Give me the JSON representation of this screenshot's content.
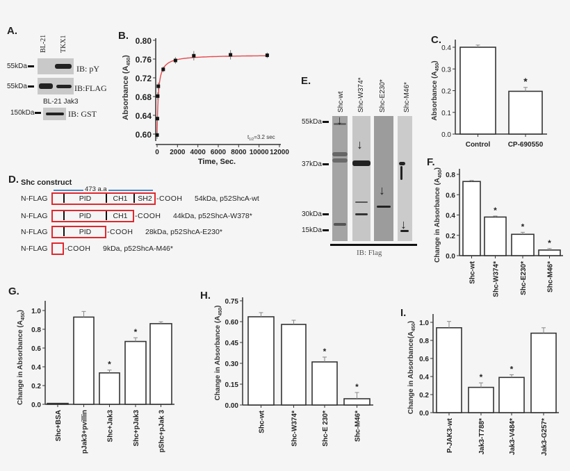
{
  "panel_A": {
    "label": "A.",
    "lanes": [
      "BL-21",
      "TKX1"
    ],
    "blots": [
      {
        "marker": "55kDa",
        "ib": "IB: pY"
      },
      {
        "marker": "55kDa",
        "ib": "IB:FLAG"
      },
      {
        "marker": "150kDa",
        "ib": "IB: GST",
        "lanes": "BL-21 Jak3"
      }
    ]
  },
  "panel_D": {
    "label": "D.",
    "title": "Shc construct",
    "length": "473 a.a",
    "rows": [
      {
        "prefix": "N-FLAG",
        "domains": [
          "",
          "PID",
          "CH1",
          "SH2"
        ],
        "suffix": "-COOH",
        "desc": "54kDa, p52ShcA-wt"
      },
      {
        "prefix": "N-FLAG",
        "domains": [
          "",
          "PID",
          "CH1"
        ],
        "suffix": "-COOH",
        "desc": "44kDa, p52ShcA-W378*"
      },
      {
        "prefix": "N-FLAG",
        "domains": [
          "",
          "PID"
        ],
        "suffix": "-COOH",
        "desc": "28kDa, p52ShcA-E230*"
      },
      {
        "prefix": "N-FLAG",
        "domains": [
          ""
        ],
        "suffix": "-COOH",
        "desc": "9kDa, p52ShcA-M46*"
      }
    ],
    "colors": {
      "box": "#e0282d",
      "line": "#4a86c5"
    }
  },
  "panel_E": {
    "label": "E.",
    "lanes": [
      "Shc-wt",
      "Shc-W374*",
      "Shc-E230*",
      "Shc-M46*"
    ],
    "markers": [
      "55kDa",
      "37kDa",
      "30kDa",
      "15kDa"
    ],
    "ib": "IB: Flag"
  },
  "chart_data": [
    {
      "panel": "B.",
      "type": "scatter",
      "ylabel": {
        "main": "Absorbance (A",
        "sub": "450",
        "end": ")"
      },
      "xlabel": "Time, Sec.",
      "xlim": [
        0,
        12000
      ],
      "ylim": [
        0.6,
        0.8
      ],
      "xticks": [
        "0",
        "2000",
        "4000",
        "6000",
        "8000",
        "10000",
        "12000"
      ],
      "yticks": [
        "0.60",
        "0.64",
        "0.68",
        "0.72",
        "0.76",
        "0.80"
      ],
      "x": [
        0,
        30,
        60,
        120,
        600,
        1800,
        3600,
        7200,
        10800
      ],
      "y": [
        0.598,
        0.633,
        0.681,
        0.702,
        0.738,
        0.757,
        0.767,
        0.769,
        0.768
      ],
      "errors": [
        0.008,
        0.006,
        0.008,
        0.008,
        0.006,
        0.007,
        0.01,
        0.01,
        0.006
      ],
      "annotation": {
        "main": "t",
        "sub": "1/2",
        "end": "=3.2 sec"
      },
      "fit_color": "#e8474c"
    },
    {
      "panel": "C.",
      "type": "bar",
      "ylabel": {
        "main": "Absorbance (A",
        "sub": "450",
        "end": ")"
      },
      "categories": [
        "Control",
        "CP-690550"
      ],
      "values": [
        0.4,
        0.197
      ],
      "errors": [
        0.01,
        0.018
      ],
      "significant": [
        false,
        true
      ],
      "ylim": [
        0,
        0.4
      ],
      "yticks": [
        "0.0",
        "0.1",
        "0.2",
        "0.3",
        "0.4"
      ]
    },
    {
      "panel": "F.",
      "type": "bar",
      "ylabel": {
        "main": "Change in Absorbance (A",
        "sub": "450",
        "end": ")"
      },
      "categories": [
        "Shc-wt",
        "Shc-W374*",
        "Shc-E230*",
        "Shc-M46*"
      ],
      "values": [
        0.73,
        0.38,
        0.21,
        0.055
      ],
      "errors": [
        0.01,
        0.01,
        0.02,
        0.015
      ],
      "significant": [
        false,
        true,
        true,
        true
      ],
      "ylim": [
        0,
        0.8
      ],
      "yticks": [
        "0.0",
        "0.2",
        "0.4",
        "0.6",
        "0.8"
      ]
    },
    {
      "panel": "G.",
      "type": "bar",
      "ylabel": {
        "main": "Change in Absorbance (A",
        "sub": "450",
        "end": ")"
      },
      "categories": [
        "Shc+BSA",
        "pJak3+pvillin",
        "Shc+Jak3",
        "Shc+pJak3",
        "pShc+pJak 3"
      ],
      "values": [
        0.01,
        0.93,
        0.335,
        0.67,
        0.86
      ],
      "errors": [
        0.0,
        0.06,
        0.03,
        0.04,
        0.02
      ],
      "significant": [
        false,
        false,
        true,
        true,
        false
      ],
      "ylim": [
        0,
        1.0
      ],
      "yticks": [
        "0.0",
        "0.2",
        "0.4",
        "0.6",
        "0.8",
        "1.0"
      ]
    },
    {
      "panel": "H.",
      "type": "bar",
      "ylabel": {
        "main": "Change in Absorbance (A",
        "sub": "450",
        "end": ")"
      },
      "categories": [
        "Shc-wt",
        "Shc-W374*",
        "Shc-E 230*",
        "Shc-M46*"
      ],
      "values": [
        0.635,
        0.58,
        0.31,
        0.045
      ],
      "errors": [
        0.03,
        0.03,
        0.035,
        0.045
      ],
      "significant": [
        false,
        false,
        true,
        true
      ],
      "ylim": [
        0,
        0.75
      ],
      "yticks": [
        "0.00",
        "0.15",
        "0.30",
        "0.45",
        "0.60",
        "0.75"
      ]
    },
    {
      "panel": "I.",
      "type": "bar",
      "ylabel": {
        "main": "Change in Absorbance(A",
        "sub": "450",
        "end": ")"
      },
      "categories": [
        "P-JAK3-wt",
        "Jak3-T788*",
        "Jak3-V484*",
        "Jak3-G257*"
      ],
      "values": [
        0.94,
        0.28,
        0.39,
        0.88
      ],
      "errors": [
        0.07,
        0.05,
        0.03,
        0.06
      ],
      "significant": [
        false,
        true,
        true,
        false
      ],
      "ylim": [
        0,
        1.0
      ],
      "yticks": [
        "0.0",
        "0.2",
        "0.4",
        "0.6",
        "0.8",
        "1.0"
      ]
    }
  ]
}
